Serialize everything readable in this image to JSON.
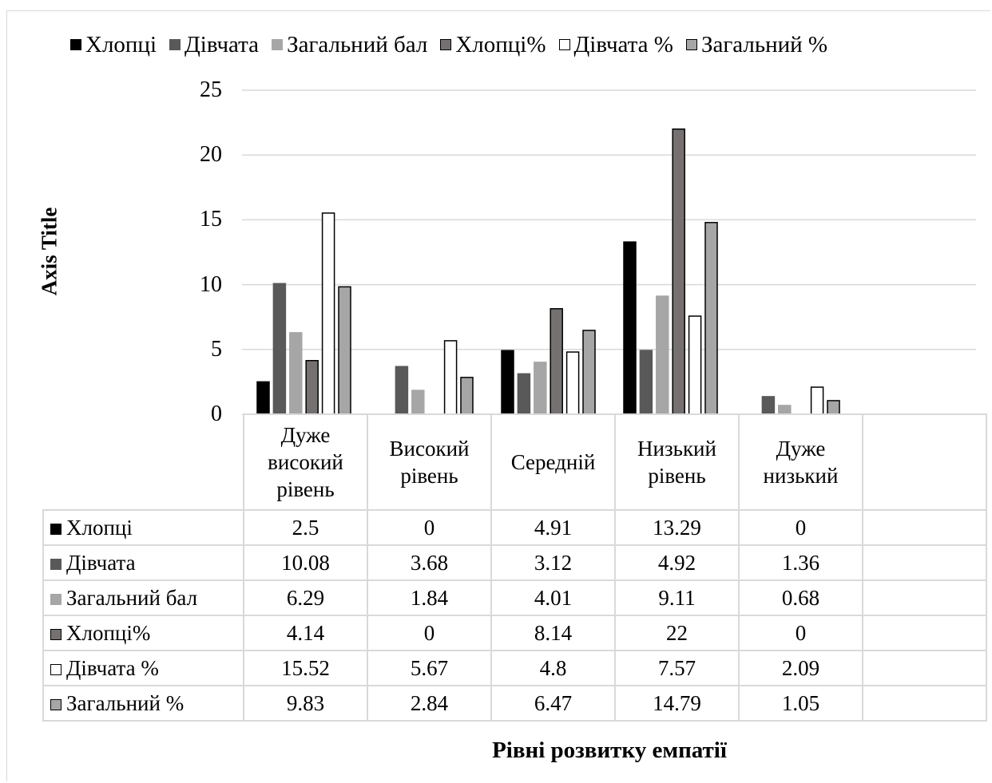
{
  "chart_data": {
    "type": "bar",
    "categories": [
      "Дуже високий рівень",
      "Високий рівень",
      "Середній",
      "Низький рівень",
      "Дуже низький"
    ],
    "category_display": [
      [
        "Дуже",
        "високий",
        "рівень"
      ],
      [
        "Високий",
        "рівень"
      ],
      [
        "Середній"
      ],
      [
        "Низький",
        "рівень"
      ],
      [
        "Дуже",
        "низький"
      ]
    ],
    "series": [
      {
        "name": "Хлопці",
        "values": [
          2.5,
          0,
          4.91,
          13.29,
          0
        ],
        "color": "#000000",
        "border": "#000000"
      },
      {
        "name": "Дівчата",
        "values": [
          10.08,
          3.68,
          3.12,
          4.92,
          1.36
        ],
        "color": "#595959",
        "border": "#595959"
      },
      {
        "name": "Загальний бал",
        "values": [
          6.29,
          1.84,
          4.01,
          9.11,
          0.68
        ],
        "color": "#a6a6a6",
        "border": "#a6a6a6"
      },
      {
        "name": "Хлопці%",
        "values": [
          4.14,
          0,
          8.14,
          22,
          0
        ],
        "color": "#767171",
        "border": "#000000"
      },
      {
        "name": "Дівчата %",
        "values": [
          15.52,
          5.67,
          4.8,
          7.57,
          2.09
        ],
        "color": "#ffffff",
        "border": "#000000"
      },
      {
        "name": "Загальний %",
        "values": [
          9.83,
          2.84,
          6.47,
          14.79,
          1.05
        ],
        "color": "#a6a6a6",
        "border": "#000000"
      }
    ],
    "table_values": [
      [
        "2.5",
        "0",
        "4.91",
        "13.29",
        "0"
      ],
      [
        "10.08",
        "3.68",
        "3.12",
        "4.92",
        "1.36"
      ],
      [
        "6.29",
        "1.84",
        "4.01",
        "9.11",
        "0.68"
      ],
      [
        "4.14",
        "0",
        "8.14",
        "22",
        "0"
      ],
      [
        "15.52",
        "5.67",
        "4.8",
        "7.57",
        "2.09"
      ],
      [
        "9.83",
        "2.84",
        "6.47",
        "14.79",
        "1.05"
      ]
    ],
    "yticks": [
      "0",
      "5",
      "10",
      "15",
      "20",
      "25"
    ],
    "ylim": [
      0,
      25
    ],
    "ylabel": "Axis Title",
    "xlabel": "Рівні розвитку емпатії",
    "grid": true,
    "legend": "top",
    "data_table": true
  }
}
